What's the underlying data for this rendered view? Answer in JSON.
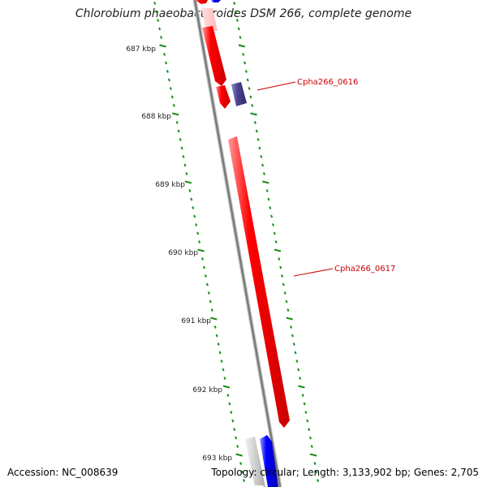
{
  "title": "Chlorobium phaeobacteroides DSM 266, complete genome",
  "footer": {
    "accession": "Accession: NC_008639",
    "topology": "Topology: circular; Length: 3,133,902 bp; Genes: 2,705"
  },
  "ticks": [
    "687 kbp",
    "688 kbp",
    "689 kbp",
    "690 kbp",
    "691 kbp",
    "692 kbp",
    "693 kbp"
  ],
  "gene_labels": [
    "Cpha266_0616",
    "Cpha266_0617"
  ],
  "colors": {
    "forward_gene": "#ff0000",
    "reverse_gene": "#0000ff",
    "trna_gene": "#4a4490",
    "selected_label": "#cc0000",
    "tick": "#1a8a1a",
    "backbone": "#888888"
  }
}
